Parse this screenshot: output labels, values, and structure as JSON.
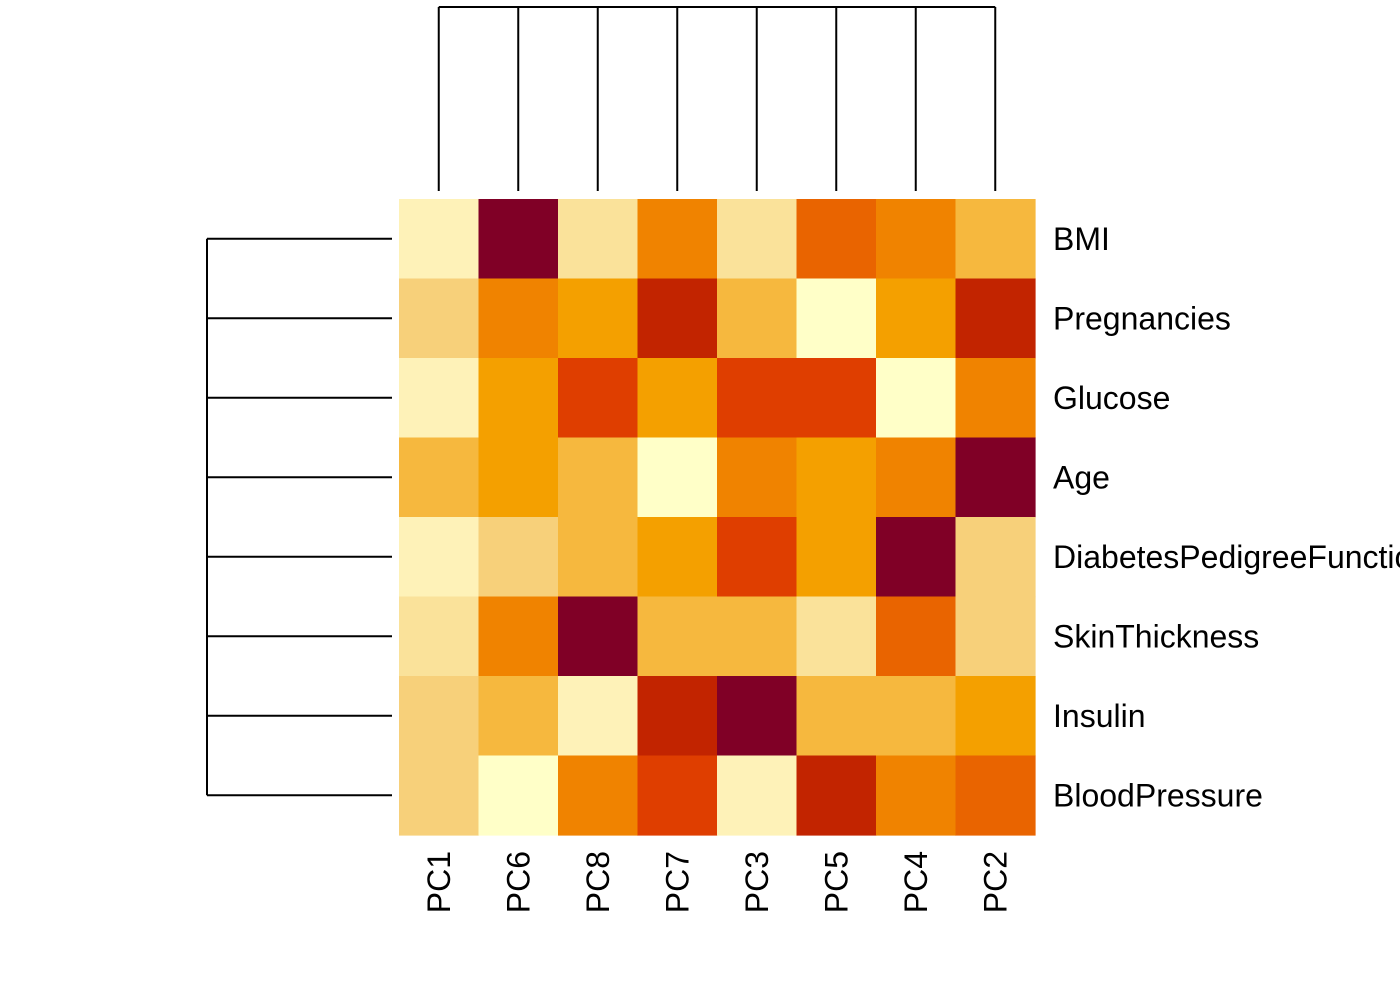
{
  "chart_data": {
    "type": "heatmap",
    "title": "",
    "xlabel": "",
    "ylabel": "",
    "columns": [
      "PC1",
      "PC6",
      "PC8",
      "PC7",
      "PC3",
      "PC5",
      "PC4",
      "PC2"
    ],
    "rows": [
      "BMI",
      "Pregnancies",
      "Glucose",
      "Age",
      "DiabetesPedigreeFunction",
      "SkinThickness",
      "Insulin",
      "BloodPressure"
    ],
    "color_scale": [
      "#FFFFC8",
      "#FEF2B8",
      "#FAE29A",
      "#F7D07A",
      "#F6B83E",
      "#F4A000",
      "#F08300",
      "#E96400",
      "#DF3E00",
      "#C22400",
      "#800026"
    ],
    "levels": [
      [
        1,
        10,
        2,
        6,
        2,
        7,
        6,
        4
      ],
      [
        3,
        6,
        5,
        9,
        4,
        0,
        5,
        9
      ],
      [
        1,
        5,
        8,
        5,
        8,
        8,
        0,
        6
      ],
      [
        4,
        5,
        4,
        0,
        6,
        5,
        6,
        10
      ],
      [
        1,
        3,
        4,
        5,
        8,
        5,
        10,
        3
      ],
      [
        2,
        6,
        10,
        4,
        4,
        2,
        7,
        3
      ],
      [
        3,
        4,
        1,
        9,
        10,
        4,
        4,
        5
      ],
      [
        3,
        0,
        6,
        8,
        1,
        9,
        6,
        7
      ]
    ],
    "column_dendrogram": true,
    "row_dendrogram": true
  }
}
